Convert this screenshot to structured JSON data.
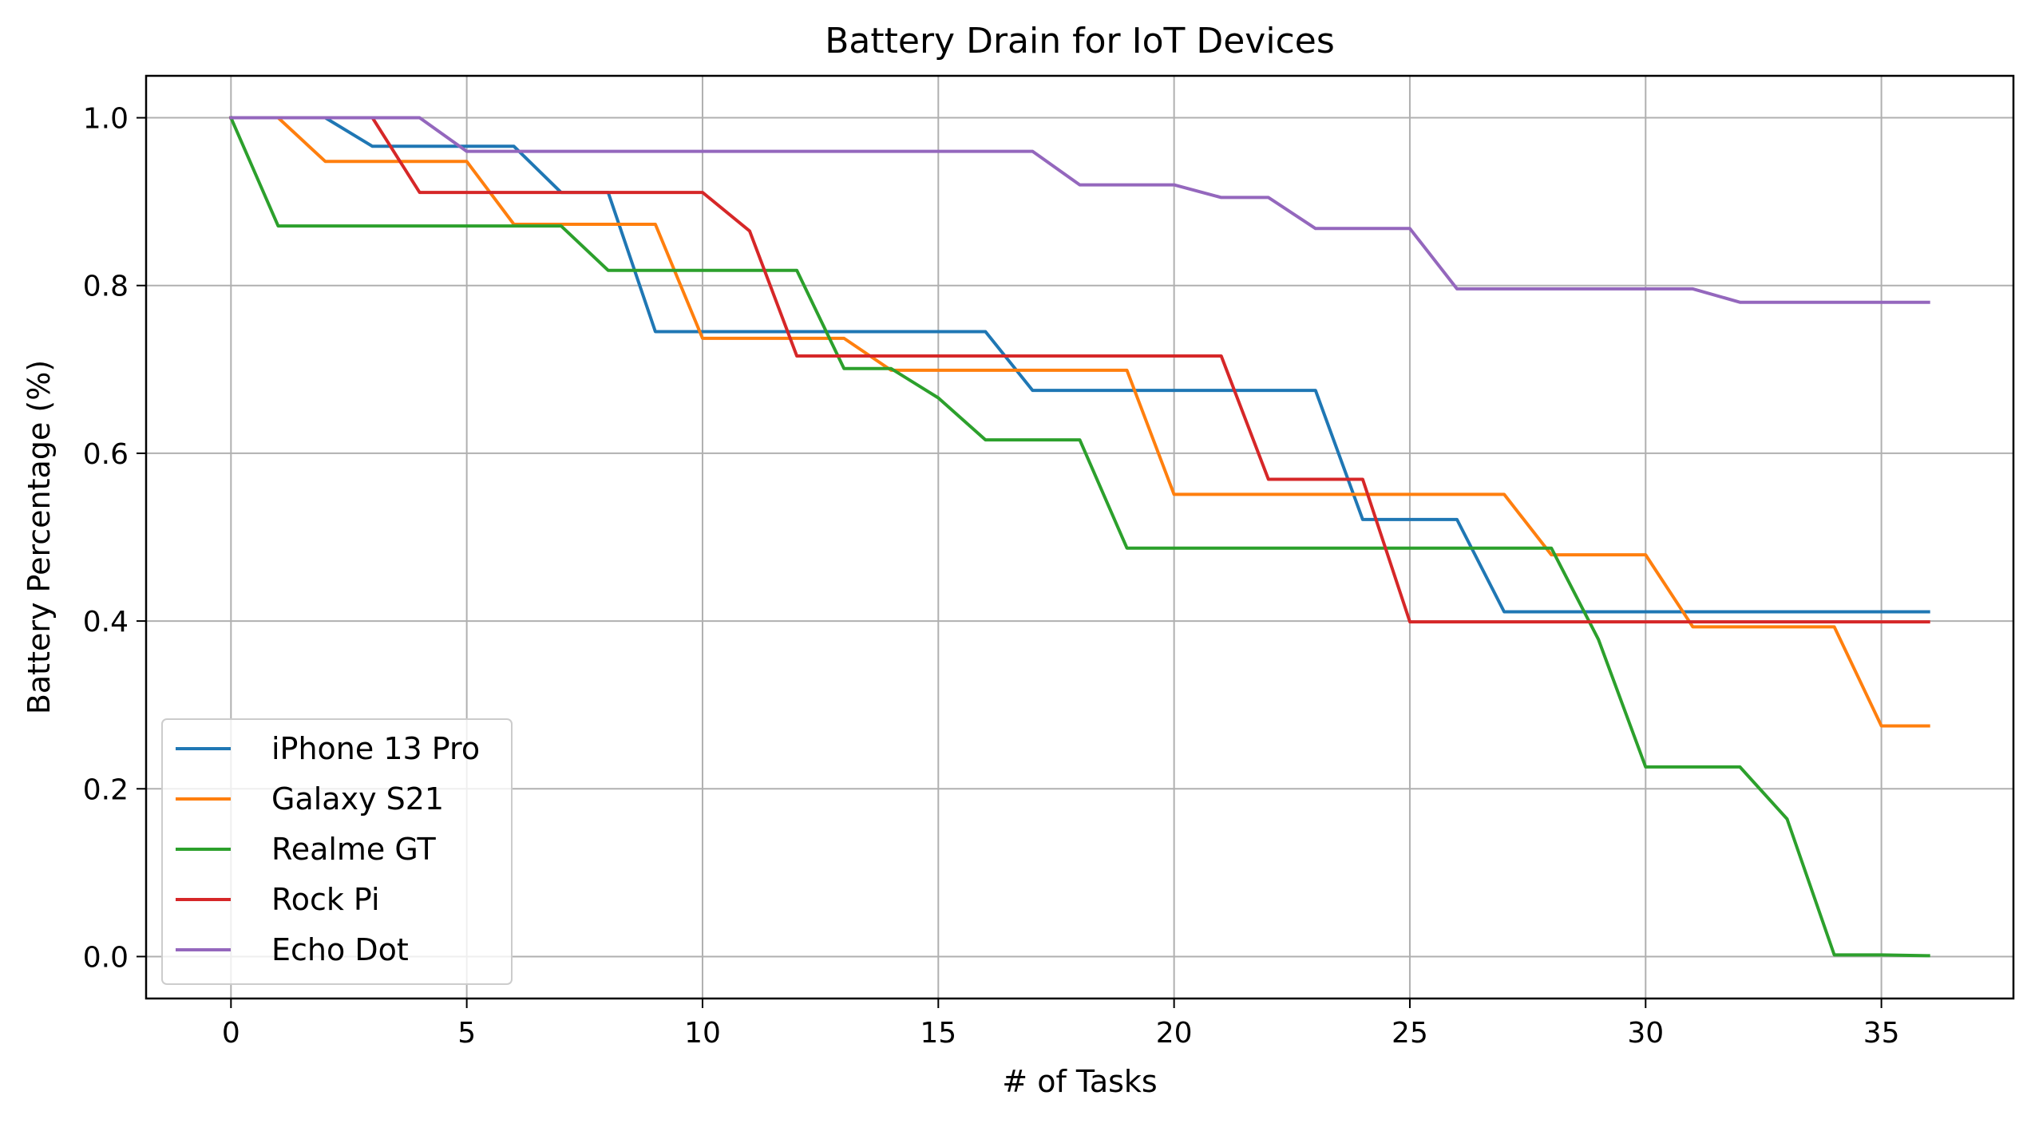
{
  "chart_data": {
    "type": "line",
    "title": "Battery Drain for IoT Devices",
    "xlabel": "# of Tasks",
    "ylabel": "Battery Percentage (%)",
    "xlim": [
      -1.8,
      37.8
    ],
    "ylim": [
      -0.05,
      1.05
    ],
    "xticks": [
      0,
      5,
      10,
      15,
      20,
      25,
      30,
      35
    ],
    "yticks": [
      0.0,
      0.2,
      0.4,
      0.6,
      0.8,
      1.0
    ],
    "xtick_labels": [
      "0",
      "5",
      "10",
      "15",
      "20",
      "25",
      "30",
      "35"
    ],
    "ytick_labels": [
      "0.0",
      "0.2",
      "0.4",
      "0.6",
      "0.8",
      "1.0"
    ],
    "grid": true,
    "legend_position": "lower-left",
    "x": [
      0,
      1,
      2,
      3,
      4,
      5,
      6,
      7,
      8,
      9,
      10,
      11,
      12,
      13,
      14,
      15,
      16,
      17,
      18,
      19,
      20,
      21,
      22,
      23,
      24,
      25,
      26,
      27,
      28,
      29,
      30,
      31,
      32,
      33,
      34,
      35,
      36
    ],
    "series": [
      {
        "name": "iPhone 13 Pro",
        "color": "#1f77b4",
        "values": [
          1.0,
          1.0,
          1.0,
          0.966,
          0.966,
          0.966,
          0.966,
          0.911,
          0.911,
          0.745,
          0.745,
          0.745,
          0.745,
          0.745,
          0.745,
          0.745,
          0.745,
          0.675,
          0.675,
          0.675,
          0.675,
          0.675,
          0.675,
          0.675,
          0.521,
          0.521,
          0.521,
          0.411,
          0.411,
          0.411,
          0.411,
          0.411,
          0.411,
          0.411,
          0.411,
          0.411,
          0.411
        ]
      },
      {
        "name": "Galaxy S21",
        "color": "#ff7f0e",
        "values": [
          1.0,
          1.0,
          0.948,
          0.948,
          0.948,
          0.948,
          0.873,
          0.873,
          0.873,
          0.873,
          0.737,
          0.737,
          0.737,
          0.737,
          0.699,
          0.699,
          0.699,
          0.699,
          0.699,
          0.699,
          0.551,
          0.551,
          0.551,
          0.551,
          0.551,
          0.551,
          0.551,
          0.551,
          0.479,
          0.479,
          0.479,
          0.393,
          0.393,
          0.393,
          0.393,
          0.275,
          0.275
        ]
      },
      {
        "name": "Realme GT",
        "color": "#2ca02c",
        "values": [
          1.0,
          0.871,
          0.871,
          0.871,
          0.871,
          0.871,
          0.871,
          0.871,
          0.818,
          0.818,
          0.818,
          0.818,
          0.818,
          0.701,
          0.701,
          0.666,
          0.616,
          0.616,
          0.616,
          0.487,
          0.487,
          0.487,
          0.487,
          0.487,
          0.487,
          0.487,
          0.487,
          0.487,
          0.487,
          0.378,
          0.226,
          0.226,
          0.226,
          0.164,
          0.002,
          0.002,
          0.001
        ]
      },
      {
        "name": "Rock Pi",
        "color": "#d62728",
        "values": [
          1.0,
          1.0,
          1.0,
          1.0,
          0.911,
          0.911,
          0.911,
          0.911,
          0.911,
          0.911,
          0.911,
          0.865,
          0.716,
          0.716,
          0.716,
          0.716,
          0.716,
          0.716,
          0.716,
          0.716,
          0.716,
          0.716,
          0.569,
          0.569,
          0.569,
          0.399,
          0.399,
          0.399,
          0.399,
          0.399,
          0.399,
          0.399,
          0.399,
          0.399,
          0.399,
          0.399,
          0.399
        ]
      },
      {
        "name": "Echo Dot",
        "color": "#9467bd",
        "values": [
          1.0,
          1.0,
          1.0,
          1.0,
          1.0,
          0.96,
          0.96,
          0.96,
          0.96,
          0.96,
          0.96,
          0.96,
          0.96,
          0.96,
          0.96,
          0.96,
          0.96,
          0.96,
          0.92,
          0.92,
          0.92,
          0.905,
          0.905,
          0.868,
          0.868,
          0.868,
          0.796,
          0.796,
          0.796,
          0.796,
          0.796,
          0.796,
          0.78,
          0.78,
          0.78,
          0.78,
          0.78
        ]
      }
    ]
  }
}
